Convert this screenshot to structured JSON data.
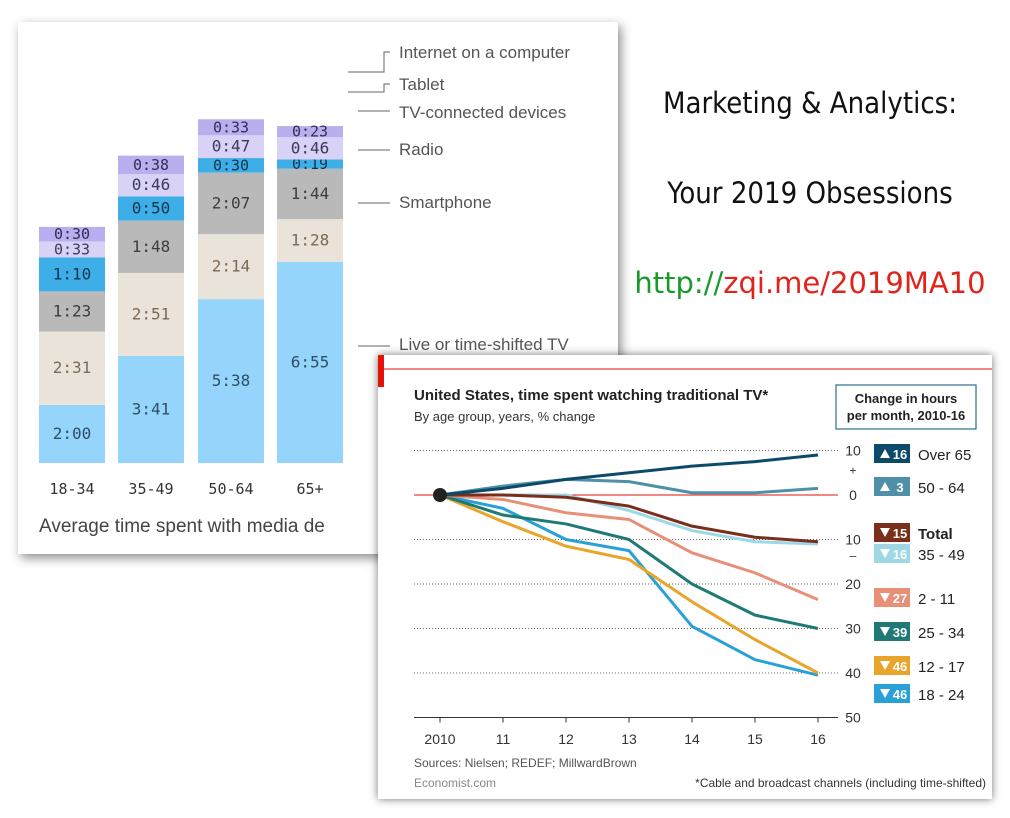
{
  "promo": {
    "line1": "Marketing & Analytics:",
    "line2": "Your 2019 Obsessions",
    "link_prefix": "http://",
    "link_rest": "zqi.me/2019MA10",
    "colors": {
      "prefix": "#1a9a2a",
      "rest": "#e0241b"
    }
  },
  "chart_data": [
    {
      "type": "bar",
      "subtype": "stacked",
      "title": "Average time spent with media de",
      "categories": [
        "18-34",
        "35-49",
        "50-64",
        "65+"
      ],
      "series": [
        {
          "name": "Live or  time-shifted TV",
          "color": "#95d4fb",
          "values": [
            "2:00",
            "3:41",
            "5:38",
            "6:55"
          ]
        },
        {
          "name": "Smartphone",
          "color": "#eae3d9",
          "values": [
            "2:31",
            "2:51",
            "2:14",
            "1:28"
          ]
        },
        {
          "name": "Radio",
          "color": "#b9b9b9",
          "values": [
            "1:23",
            "1:48",
            "2:07",
            "1:44"
          ]
        },
        {
          "name": "TV-connected devices",
          "color": "#3eaee8",
          "values": [
            "1:10",
            "0:50",
            "0:30",
            "0:19"
          ]
        },
        {
          "name": "Tablet",
          "color": "#d7d2f6",
          "values": [
            "0:33",
            "0:46",
            "0:47",
            "0:46"
          ]
        },
        {
          "name": "Internet on a computer",
          "color": "#b9afee",
          "values": [
            "0:30",
            "0:38",
            "0:33",
            "0:23"
          ]
        }
      ]
    },
    {
      "type": "line",
      "title": "United States, time spent watching traditional TV*",
      "subtitle": "By age group, years, % change",
      "legend_title": "Change in hours per month, 2010-16",
      "x": [
        "2010",
        "11",
        "12",
        "13",
        "14",
        "15",
        "16"
      ],
      "y_ticks": [
        {
          "value": 10,
          "label": "10",
          "sign": "+"
        },
        {
          "value": 0,
          "label": "0",
          "sign": ""
        },
        {
          "value": -10,
          "label": "10",
          "sign": "–"
        },
        {
          "value": -20,
          "label": "20",
          "sign": ""
        },
        {
          "value": -30,
          "label": "30",
          "sign": ""
        },
        {
          "value": -40,
          "label": "40",
          "sign": ""
        },
        {
          "value": -50,
          "label": "50",
          "sign": ""
        }
      ],
      "ylim": [
        -50,
        10
      ],
      "series": [
        {
          "name": "Over 65",
          "change": "16",
          "direction": "up",
          "color": "#0b4a68",
          "values": [
            0,
            1.5,
            3.5,
            5,
            6.5,
            7.5,
            9
          ]
        },
        {
          "name": "50 - 64",
          "change": "3",
          "direction": "up",
          "color": "#4f8fa8",
          "values": [
            0,
            2,
            3.5,
            3,
            0.5,
            0.5,
            1.5
          ]
        },
        {
          "name": "Total",
          "change": "15",
          "direction": "down",
          "color": "#7a2e1c",
          "values": [
            0,
            0,
            -0.5,
            -2.5,
            -7,
            -9.5,
            -10.5
          ]
        },
        {
          "name": "35 - 49",
          "change": "16",
          "direction": "down",
          "color": "#9ed8e6",
          "values": [
            0,
            0,
            0,
            -3.5,
            -8,
            -10.5,
            -11
          ]
        },
        {
          "name": "2 - 11",
          "change": "27",
          "direction": "down",
          "color": "#e88f78",
          "values": [
            0,
            -1,
            -4,
            -5.5,
            -13,
            -17.5,
            -23.5
          ]
        },
        {
          "name": "25 - 34",
          "change": "39",
          "direction": "down",
          "color": "#1f7a76",
          "values": [
            0,
            -4.5,
            -6.5,
            -10,
            -20,
            -27,
            -30
          ]
        },
        {
          "name": "12 - 17",
          "change": "46",
          "direction": "down",
          "color": "#e9a52a",
          "values": [
            0,
            -6,
            -11.5,
            -14.5,
            -24,
            -32.5,
            -40
          ]
        },
        {
          "name": "18 - 24",
          "change": "46",
          "direction": "down",
          "color": "#2aa1d6",
          "values": [
            0,
            -3,
            -10,
            -12.5,
            -29.5,
            -37,
            -40.5
          ]
        }
      ],
      "source": "Sources: Nielsen; REDEF; MillwardBrown",
      "publisher": "Economist.com",
      "footnote": "*Cable and broadcast channels (including time-shifted)"
    }
  ]
}
